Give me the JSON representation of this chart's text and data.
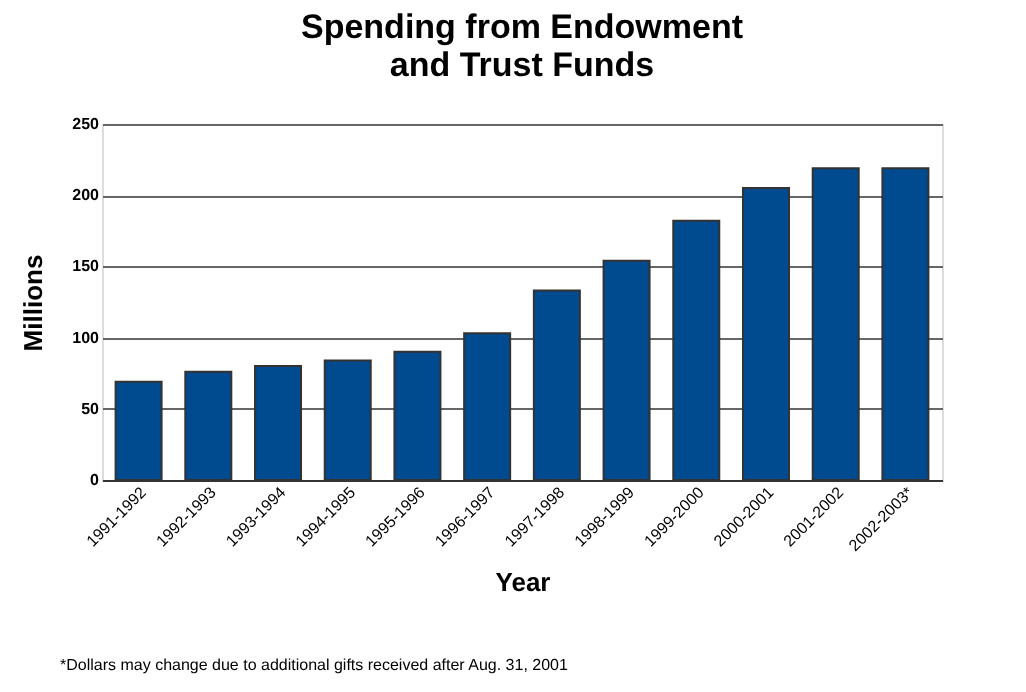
{
  "chart_data": {
    "type": "bar",
    "title": "Spending from Endowment\nand Trust Funds",
    "xlabel": "Year",
    "ylabel": "Millions",
    "categories": [
      "1991-1992",
      "1992-1993",
      "1993-1994",
      "1994-1995",
      "1995-1996",
      "1996-1997",
      "1997-1998",
      "1998-1999",
      "1999-2000",
      "2000-2001",
      "2001-2002",
      "2002-2003*"
    ],
    "values": [
      69,
      76,
      80,
      84,
      90,
      103,
      133,
      154,
      182,
      205,
      219,
      219
    ],
    "color": "#004a8f",
    "ylim": [
      0,
      250
    ],
    "yticks": [
      0,
      50,
      100,
      150,
      200,
      250
    ],
    "grid": "y",
    "annotations": [
      "*Dollars may change due to additional gifts received after Aug. 31, 2001"
    ]
  }
}
